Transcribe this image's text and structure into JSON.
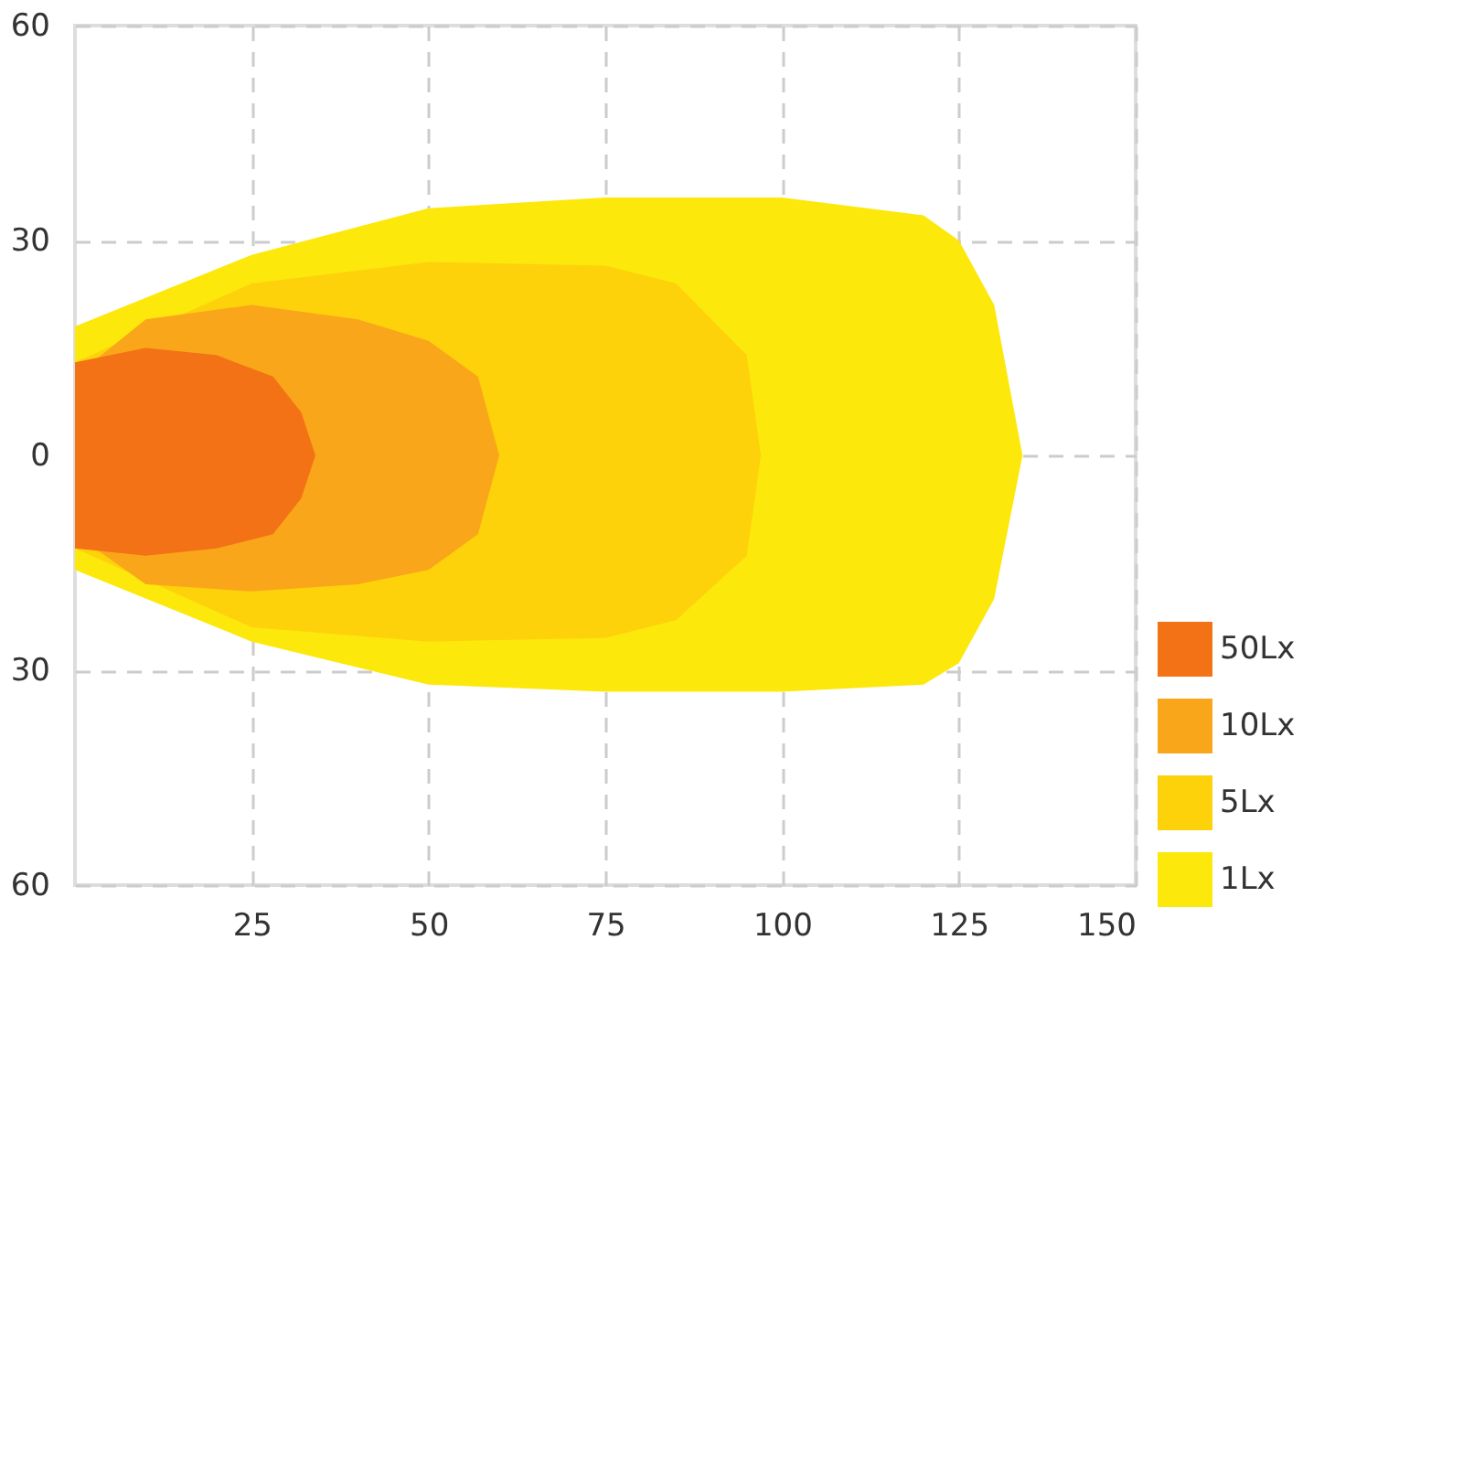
{
  "chart_data": {
    "type": "area",
    "xlim": [
      0,
      150
    ],
    "xticks": [
      25,
      50,
      75,
      100,
      125,
      150
    ],
    "ylim": [
      -60,
      60
    ],
    "yticks": [
      {
        "value": -60,
        "label": "60"
      },
      {
        "value": -30,
        "label": "30"
      },
      0,
      30,
      60
    ],
    "grid": true,
    "legend": "bottom right",
    "series": [
      {
        "name": "50Lx",
        "color": "#f47216",
        "x": [
          0,
          10,
          20,
          28,
          32,
          34
        ],
        "values": [
          13,
          15,
          14,
          11,
          6,
          0
        ]
      },
      {
        "color": "#f47216",
        "x": [
          0,
          10,
          20,
          28,
          32,
          34
        ],
        "values": [
          -13,
          -14,
          -13,
          -11,
          -6,
          0
        ]
      },
      {
        "name": "10Lx",
        "color": "#faa61a",
        "x": [
          0,
          10,
          25,
          40,
          50,
          57,
          60
        ],
        "values": [
          11,
          19,
          21,
          19,
          16,
          11,
          0
        ]
      },
      {
        "color": "#faa61a",
        "x": [
          0,
          10,
          25,
          40,
          50,
          57,
          60
        ],
        "values": [
          -11,
          -18,
          -19,
          -18,
          -16,
          -11,
          0
        ]
      },
      {
        "name": "5Lx",
        "color": "#fdd20a",
        "x": [
          0,
          25,
          50,
          75,
          85,
          95,
          97
        ],
        "values": [
          13,
          24,
          27,
          26.5,
          24,
          14,
          0
        ]
      },
      {
        "color": "#fdd20a",
        "x": [
          0,
          25,
          50,
          75,
          85,
          95,
          97
        ],
        "values": [
          -13,
          -24,
          -26,
          -25.5,
          -23,
          -14,
          0
        ]
      },
      {
        "name": "1Lx",
        "color": "#fde80c",
        "x": [
          0,
          25,
          50,
          75,
          100,
          120,
          125,
          130,
          134
        ],
        "values": [
          18,
          28,
          34.5,
          36,
          36,
          33.5,
          30,
          21,
          0
        ]
      },
      {
        "color": "#fde80c",
        "x": [
          0,
          25,
          50,
          75,
          100,
          120,
          125,
          130,
          134
        ],
        "values": [
          -16,
          -26,
          -32,
          -33,
          -33,
          -32,
          -29,
          -20,
          0
        ]
      }
    ]
  }
}
